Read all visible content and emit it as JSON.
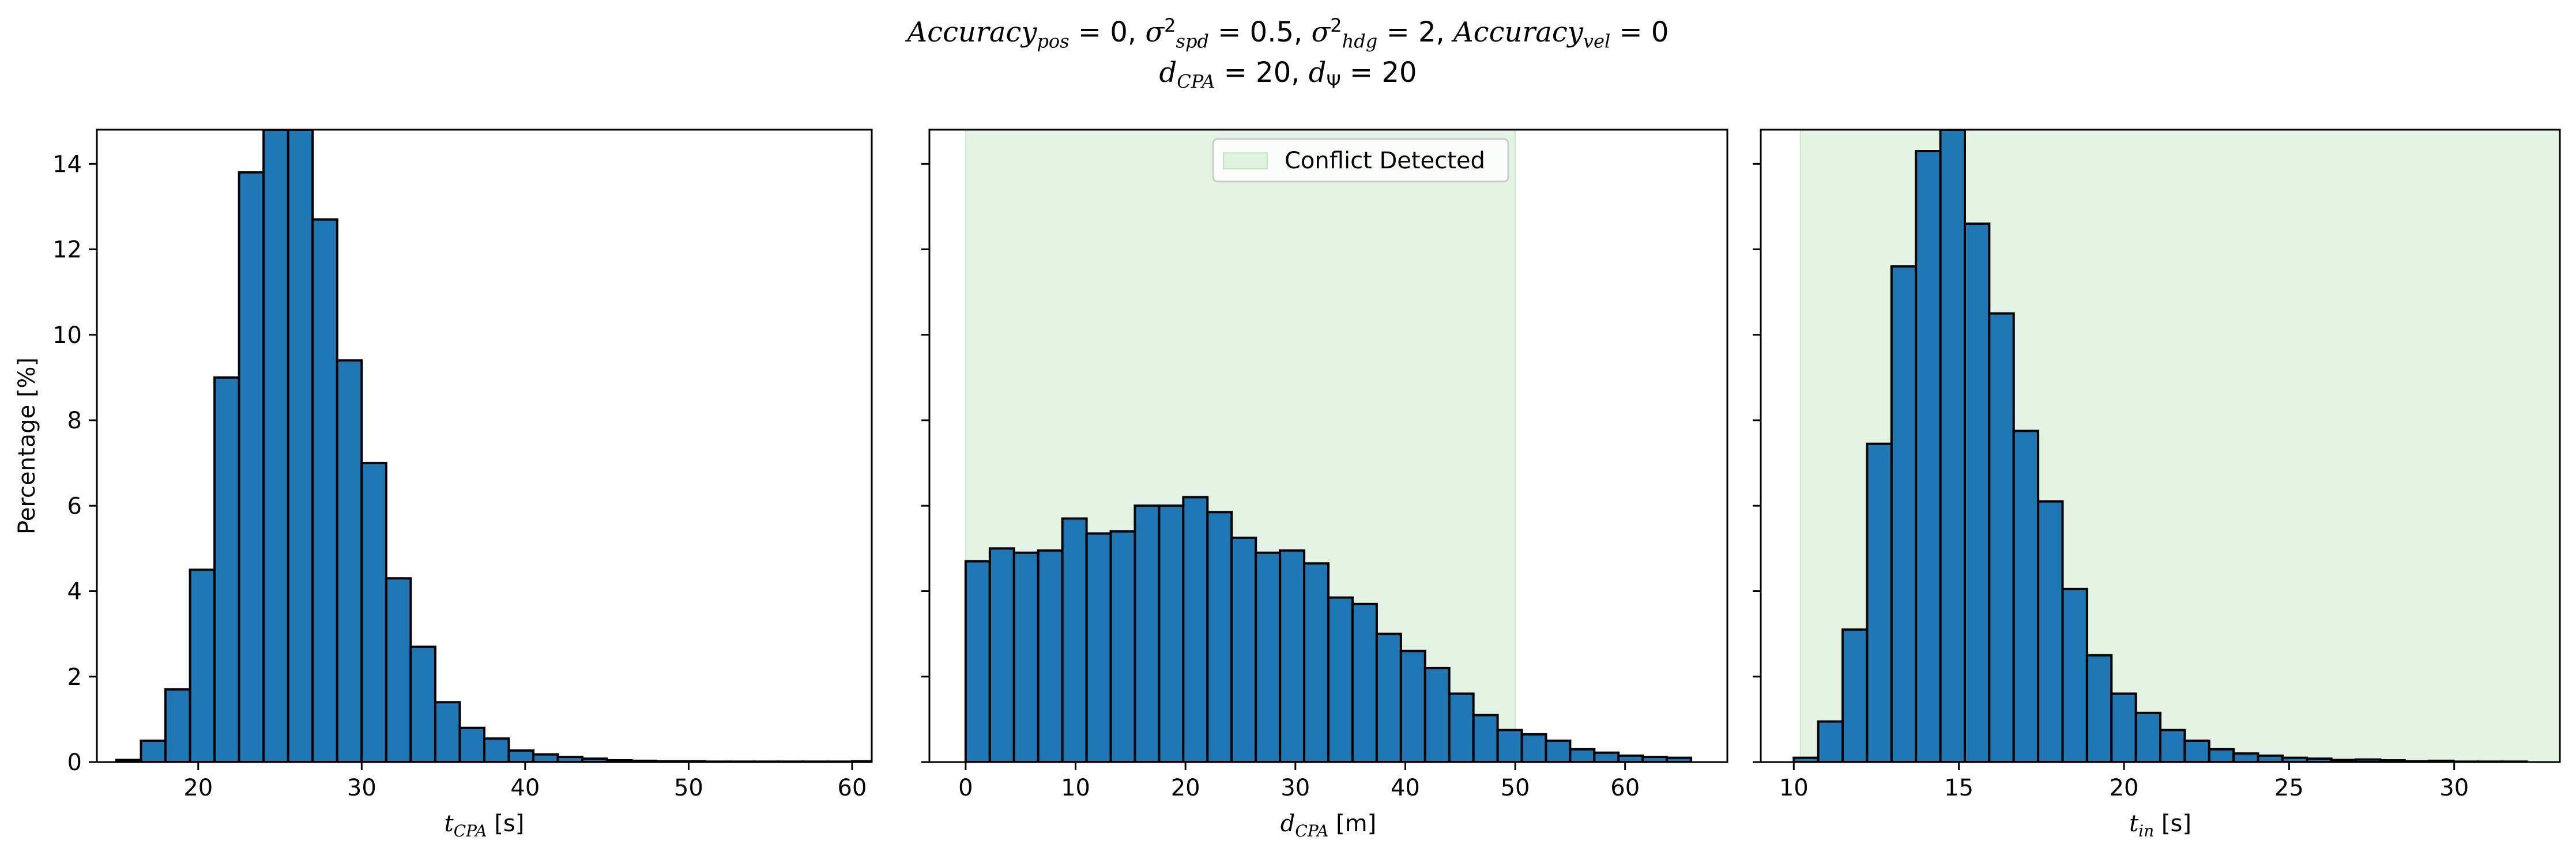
{
  "figure": {
    "title_line1": "Accuracy_pos = 0, σ²_spd = 0.5, σ²_hdg = 2, Accuracy_vel = 0",
    "title_line2": "d_CPA = 20, d_Ψ = 20"
  },
  "colors": {
    "bar_fill": "#1f77b4",
    "bar_edge": "#000000",
    "conflict_span": "#2ca02c"
  },
  "chart_data": [
    {
      "type": "bar",
      "panel": "left",
      "xlabel": "t_CPA [s]",
      "ylabel": "Percentage [%]",
      "xlim": [
        13.8,
        61.2
      ],
      "ylim": [
        0,
        14.8
      ],
      "xticks": [
        20,
        30,
        40,
        50,
        60
      ],
      "yticks": [
        0,
        2,
        4,
        6,
        8,
        10,
        12,
        14
      ],
      "bin_start": 15.0,
      "bin_width": 1.5,
      "values": [
        0.05,
        0.5,
        1.7,
        4.5,
        9.0,
        13.8,
        14.8,
        14.8,
        12.7,
        9.4,
        7.0,
        4.3,
        2.7,
        1.4,
        0.8,
        0.55,
        0.27,
        0.18,
        0.12,
        0.08,
        0.04,
        0.03,
        0.02,
        0.02,
        0.01,
        0.01,
        0.01,
        0.01,
        0.01,
        0.01,
        0.02
      ],
      "grid": false
    },
    {
      "type": "bar",
      "panel": "middle",
      "xlabel": "d_CPA [m]",
      "xlim": [
        -3.3,
        69.3
      ],
      "ylim": [
        0,
        14.8
      ],
      "xticks": [
        0,
        10,
        20,
        30,
        40,
        50,
        60
      ],
      "yticks": [
        0,
        2,
        4,
        6,
        8,
        10,
        12,
        14
      ],
      "bin_start": 0,
      "bin_width": 2.2,
      "values": [
        4.7,
        5.0,
        4.9,
        4.95,
        5.7,
        5.35,
        5.4,
        6.0,
        6.0,
        6.2,
        5.85,
        5.25,
        4.9,
        4.95,
        4.65,
        3.85,
        3.7,
        3.0,
        2.6,
        2.2,
        1.6,
        1.1,
        0.75,
        0.65,
        0.5,
        0.3,
        0.22,
        0.15,
        0.12,
        0.1
      ],
      "highlight_span": [
        0,
        50
      ],
      "legend": [
        "Conflict Detected"
      ],
      "legend_position": "upper center",
      "grid": false
    },
    {
      "type": "bar",
      "panel": "right",
      "xlabel": "t_in [s]",
      "xlim": [
        9.0,
        33.2
      ],
      "ylim": [
        0,
        14.8
      ],
      "xticks": [
        10,
        15,
        20,
        25,
        30
      ],
      "yticks": [
        0,
        2,
        4,
        6,
        8,
        10,
        12,
        14
      ],
      "bin_start": 10.0,
      "bin_width": 0.74,
      "values": [
        0.1,
        0.95,
        3.1,
        7.45,
        11.6,
        14.3,
        14.8,
        12.6,
        10.5,
        7.75,
        6.1,
        4.05,
        2.5,
        1.6,
        1.15,
        0.75,
        0.5,
        0.3,
        0.2,
        0.15,
        0.1,
        0.08,
        0.05,
        0.06,
        0.04,
        0.02,
        0.03,
        0.01,
        0.01,
        0.01
      ],
      "highlight_span": [
        10.2,
        33.2
      ],
      "grid": false
    }
  ]
}
